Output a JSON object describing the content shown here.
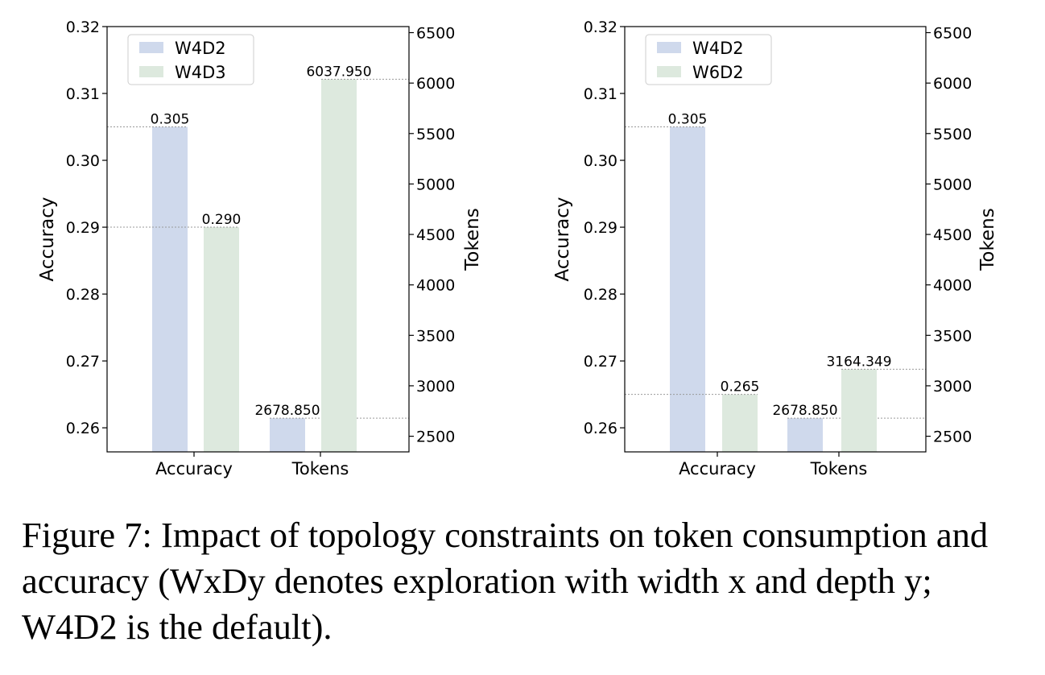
{
  "caption": "Figure 7: Impact of topology constraints on token consumption and accuracy (WxDy denotes exploration with width x and depth y; W4D2 is the default).",
  "chart_data": [
    {
      "type": "bar",
      "categories": [
        "Accuracy",
        "Tokens"
      ],
      "ylabel": "Accuracy",
      "y2label": "Tokens",
      "ylim": [
        0.2564,
        0.32
      ],
      "y2lim": [
        2345,
        6560
      ],
      "yticks": [
        0.26,
        0.27,
        0.28,
        0.29,
        0.3,
        0.31,
        0.32
      ],
      "yticklabels": [
        "0.26",
        "0.27",
        "0.28",
        "0.29",
        "0.30",
        "0.31",
        "0.32"
      ],
      "y2ticks": [
        2500,
        3000,
        3500,
        4000,
        4500,
        5000,
        5500,
        6000,
        6500
      ],
      "y2ticklabels": [
        "2500",
        "3000",
        "3500",
        "4000",
        "4500",
        "5000",
        "5500",
        "6000",
        "6500"
      ],
      "legend_position": "top-left",
      "series": [
        {
          "name": "W4D2",
          "color": "#cfd9ec",
          "accuracy": 0.305,
          "accuracy_label": "0.305",
          "tokens": 2678.85,
          "tokens_label": "2678.850"
        },
        {
          "name": "W4D3",
          "color": "#dde9de",
          "accuracy": 0.29,
          "accuracy_label": "0.290",
          "tokens": 6037.95,
          "tokens_label": "6037.950"
        }
      ]
    },
    {
      "type": "bar",
      "categories": [
        "Accuracy",
        "Tokens"
      ],
      "ylabel": "Accuracy",
      "y2label": "Tokens",
      "ylim": [
        0.2564,
        0.32
      ],
      "y2lim": [
        2345,
        6560
      ],
      "yticks": [
        0.26,
        0.27,
        0.28,
        0.29,
        0.3,
        0.31,
        0.32
      ],
      "yticklabels": [
        "0.26",
        "0.27",
        "0.28",
        "0.29",
        "0.30",
        "0.31",
        "0.32"
      ],
      "y2ticks": [
        2500,
        3000,
        3500,
        4000,
        4500,
        5000,
        5500,
        6000,
        6500
      ],
      "y2ticklabels": [
        "2500",
        "3000",
        "3500",
        "4000",
        "4500",
        "5000",
        "5500",
        "6000",
        "6500"
      ],
      "legend_position": "top-left",
      "series": [
        {
          "name": "W4D2",
          "color": "#cfd9ec",
          "accuracy": 0.305,
          "accuracy_label": "0.305",
          "tokens": 2678.85,
          "tokens_label": "2678.850"
        },
        {
          "name": "W6D2",
          "color": "#dde9de",
          "accuracy": 0.265,
          "accuracy_label": "0.265",
          "tokens": 3164.349,
          "tokens_label": "3164.349"
        }
      ]
    }
  ]
}
